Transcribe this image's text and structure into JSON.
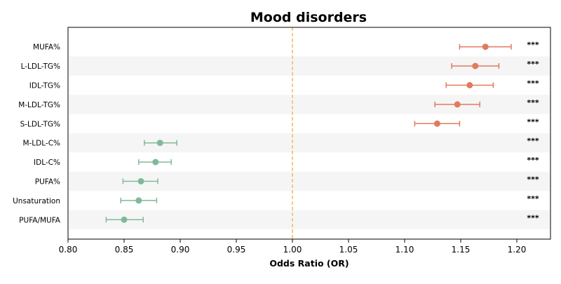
{
  "chart_data": {
    "type": "scatter",
    "title": "Mood disorders",
    "xlabel": "Odds Ratio (OR)",
    "ylabel": "",
    "xlim": [
      0.8,
      1.23
    ],
    "xticks": [
      0.8,
      0.85,
      0.9,
      0.95,
      1.0,
      1.05,
      1.1,
      1.15,
      1.2
    ],
    "xtick_labels": [
      "0.80",
      "0.85",
      "0.90",
      "0.95",
      "1.00",
      "1.05",
      "1.10",
      "1.15",
      "1.20"
    ],
    "reference_line": 1.0,
    "row_striping": true,
    "colors": {
      "positive": "#e07b5f",
      "negative": "#82b89a",
      "reference": "#f0c070",
      "stripe": "#f5f5f5"
    },
    "points": [
      {
        "label": "MUFA%",
        "or": 1.172,
        "ci_low": 1.149,
        "ci_high": 1.195,
        "significance": "***",
        "direction": "positive"
      },
      {
        "label": "L-LDL-TG%",
        "or": 1.163,
        "ci_low": 1.142,
        "ci_high": 1.184,
        "significance": "***",
        "direction": "positive"
      },
      {
        "label": "IDL-TG%",
        "or": 1.158,
        "ci_low": 1.137,
        "ci_high": 1.179,
        "significance": "***",
        "direction": "positive"
      },
      {
        "label": "M-LDL-TG%",
        "or": 1.147,
        "ci_low": 1.127,
        "ci_high": 1.167,
        "significance": "***",
        "direction": "positive"
      },
      {
        "label": "S-LDL-TG%",
        "or": 1.129,
        "ci_low": 1.109,
        "ci_high": 1.149,
        "significance": "***",
        "direction": "positive"
      },
      {
        "label": "M-LDL-C%",
        "or": 0.882,
        "ci_low": 0.868,
        "ci_high": 0.897,
        "significance": "***",
        "direction": "negative"
      },
      {
        "label": "IDL-C%",
        "or": 0.878,
        "ci_low": 0.863,
        "ci_high": 0.892,
        "significance": "***",
        "direction": "negative"
      },
      {
        "label": "PUFA%",
        "or": 0.865,
        "ci_low": 0.849,
        "ci_high": 0.88,
        "significance": "***",
        "direction": "negative"
      },
      {
        "label": "Unsaturation",
        "or": 0.863,
        "ci_low": 0.847,
        "ci_high": 0.879,
        "significance": "***",
        "direction": "negative"
      },
      {
        "label": "PUFA/MUFA",
        "or": 0.85,
        "ci_low": 0.834,
        "ci_high": 0.867,
        "significance": "***",
        "direction": "negative"
      }
    ]
  }
}
